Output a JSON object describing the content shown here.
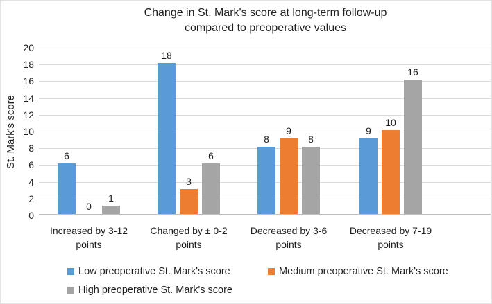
{
  "chart_data": {
    "type": "bar",
    "title": "Change in St. Mark's score at long-term follow-up compared to preoperative values",
    "title_lines": [
      "Change in St. Mark's score at long-term follow-up",
      "compared to preoperative values"
    ],
    "ylabel": "St. Mark's score",
    "xlabel": "",
    "ylim": [
      0,
      20
    ],
    "yticks": [
      0,
      2,
      4,
      6,
      8,
      10,
      12,
      14,
      16,
      18,
      20
    ],
    "grid": true,
    "legend_position": "bottom",
    "categories": [
      "Increased by 3-12 points",
      "Changed by ± 0-2 points",
      "Decreased by 3-6 points",
      "Decreased by 7-19 points"
    ],
    "category_lines": [
      [
        "Increased by 3-12",
        "points"
      ],
      [
        "Changed by ± 0-2",
        "points"
      ],
      [
        "Decreased by 3-6",
        "points"
      ],
      [
        "Decreased by 7-19",
        "points"
      ]
    ],
    "series": [
      {
        "name": "Low preoperative St. Mark's score",
        "color": "#5B9BD5",
        "values": [
          6,
          18,
          8,
          9
        ]
      },
      {
        "name": "Medium preoperative St. Mark's score",
        "color": "#ED7D31",
        "values": [
          0,
          3,
          9,
          10
        ]
      },
      {
        "name": "High preoperative St. Mark's score",
        "color": "#A5A5A5",
        "values": [
          1,
          6,
          8,
          16
        ]
      }
    ],
    "colors": {
      "gridline": "#D9D9D9",
      "axis_line": "#C0C0C0",
      "text": "#1F1F1F"
    }
  }
}
